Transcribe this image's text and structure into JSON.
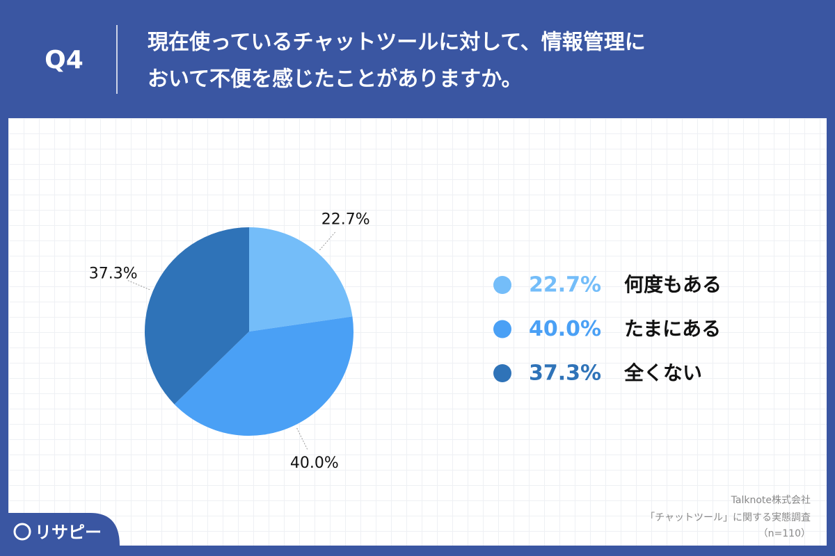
{
  "chart_data": {
    "type": "pie",
    "question_label": "Q4",
    "title": [
      "現在使っているチャットツールに対して、情報管理に",
      "おいて不便を感じたことがありますか。"
    ],
    "categories": [
      "何度もある",
      "たまにある",
      "全くない"
    ],
    "values": [
      22.7,
      40.0,
      37.3
    ],
    "value_labels": [
      "22.7%",
      "40.0%",
      "37.3%"
    ],
    "colors": [
      "#74bdf9",
      "#4aa0f5",
      "#2f73b8"
    ],
    "legend": "right",
    "source": [
      "Talknote株式会社",
      "「チャットツール」に関する実態調査",
      "（n=110）"
    ],
    "brand": "リサピー"
  }
}
